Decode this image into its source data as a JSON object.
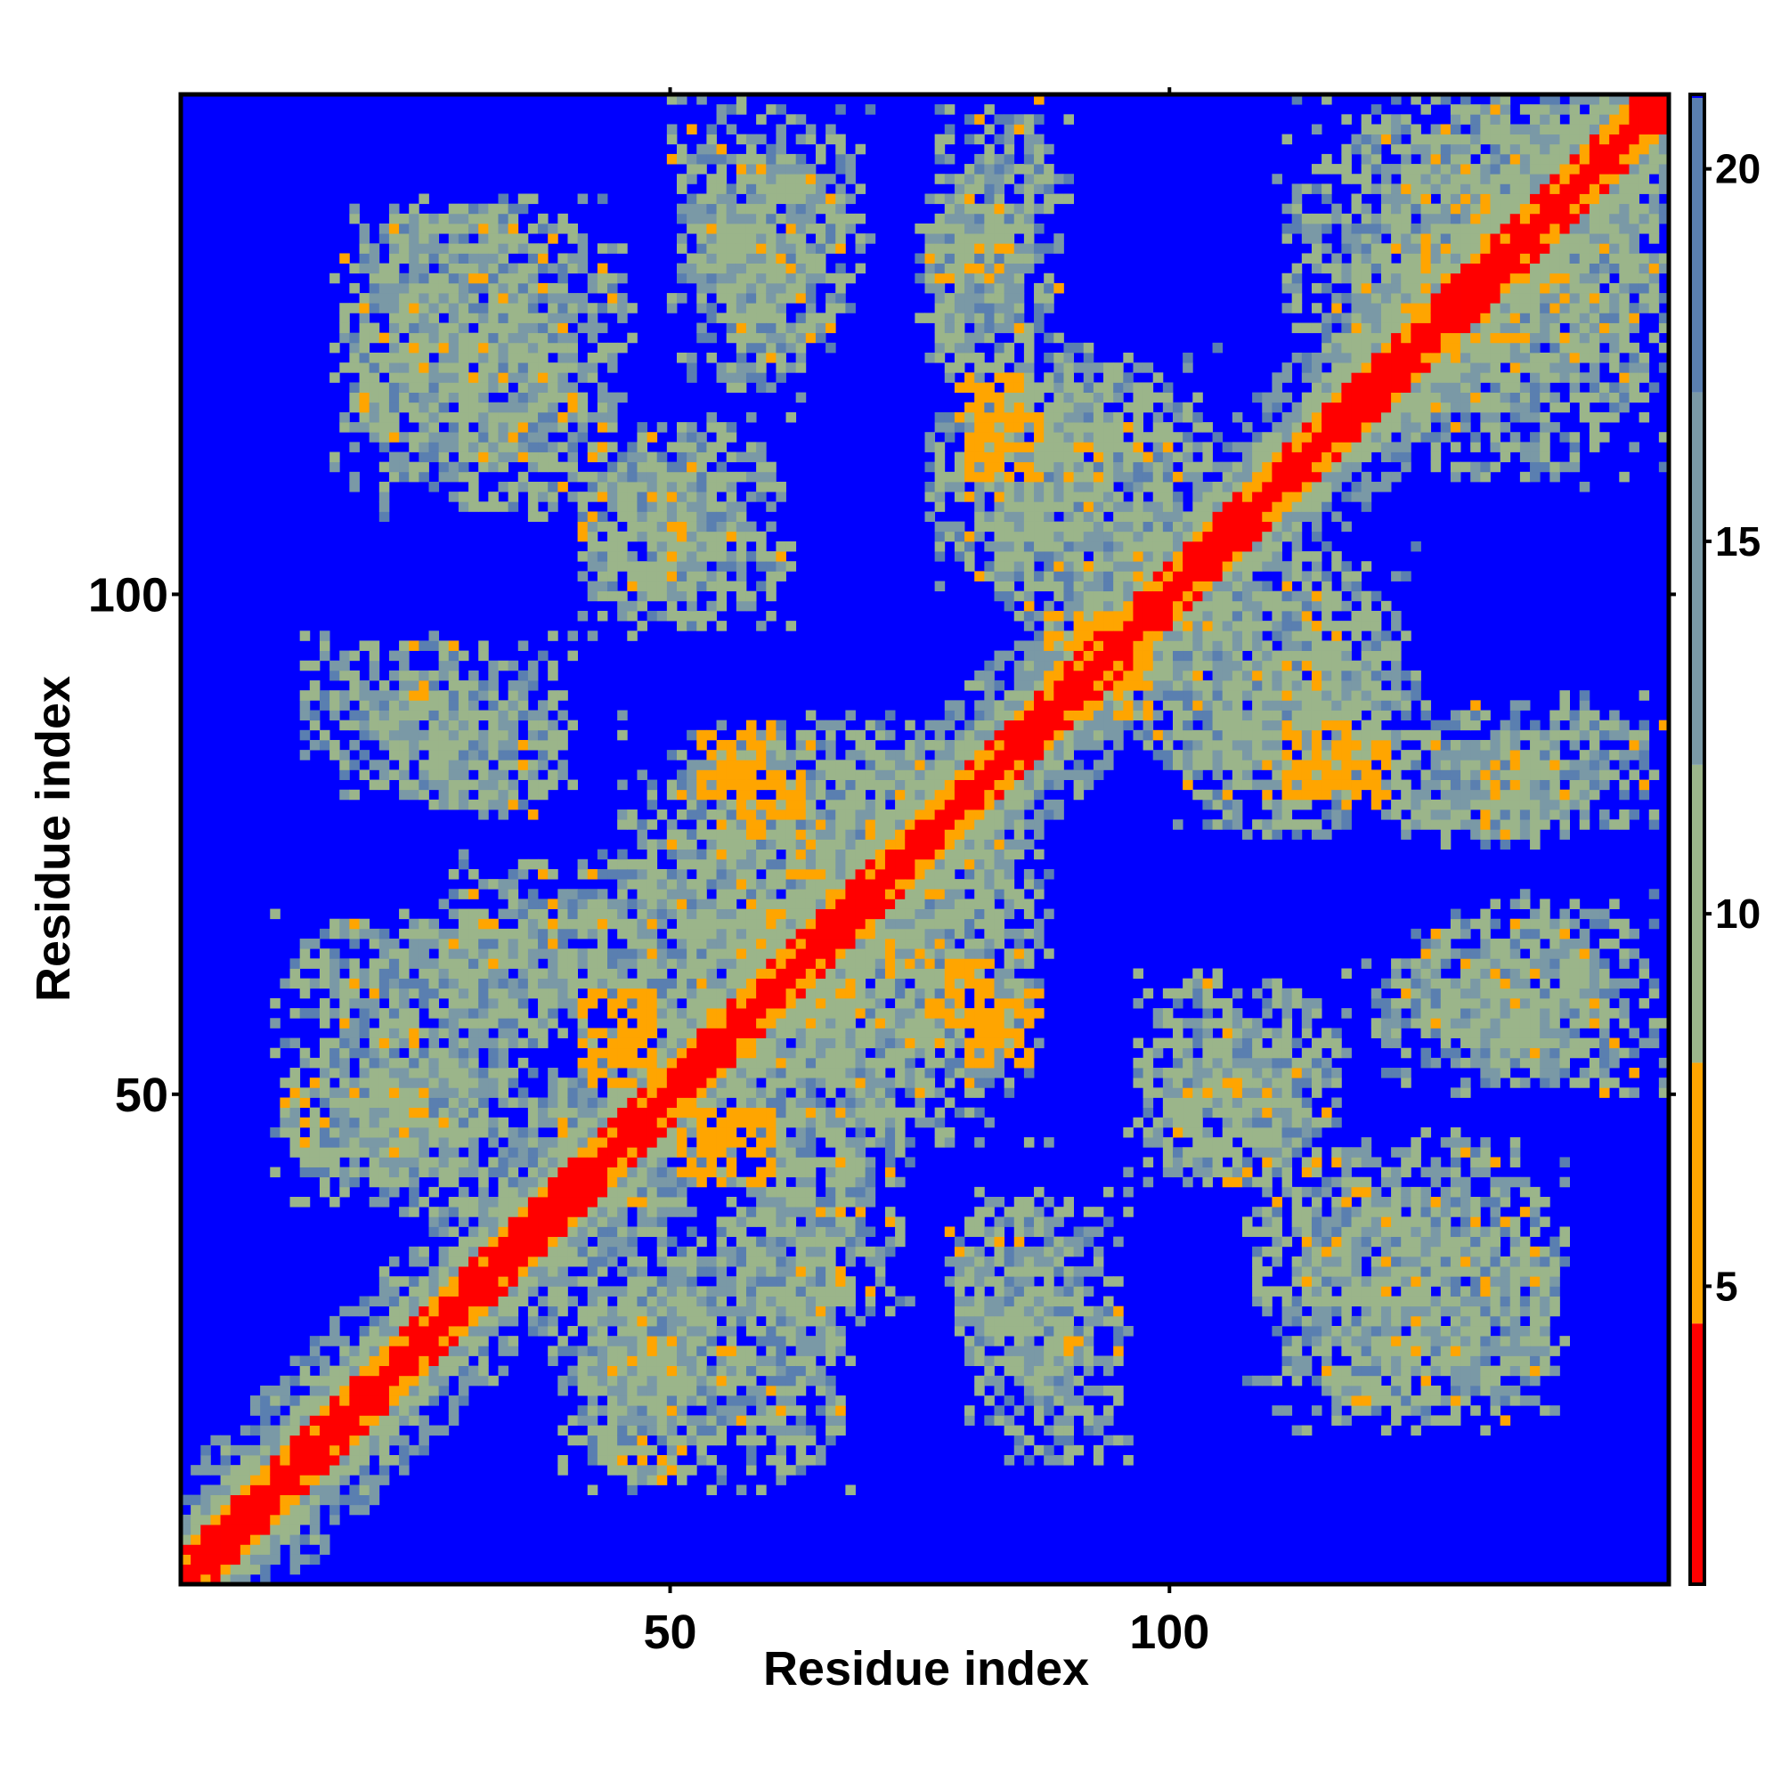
{
  "chart_data": {
    "type": "heatmap",
    "title": "",
    "xlabel": "Residue index",
    "ylabel": "Residue index",
    "n_residues": 150,
    "xlim": [
      1,
      150
    ],
    "ylim": [
      1,
      150
    ],
    "x_ticks": [
      50,
      100
    ],
    "y_ticks": [
      50,
      100
    ],
    "x_tick_labels": [
      "50",
      "100"
    ],
    "y_tick_labels": [
      "50",
      "100"
    ],
    "colorbar": {
      "range": [
        1,
        21
      ],
      "ticks": [
        5,
        10,
        15,
        20
      ],
      "tick_labels": [
        "5",
        "10",
        "15",
        "20"
      ],
      "segments": [
        {
          "from": 1,
          "to": 4.5,
          "color": "#ff0000"
        },
        {
          "from": 4.5,
          "to": 8,
          "color": "#ffa500"
        },
        {
          "from": 8,
          "to": 12,
          "color": "#9bb58a"
        },
        {
          "from": 12,
          "to": 17,
          "color": "#7a99a6"
        },
        {
          "from": 17,
          "to": 21,
          "color": "#5a7fb0"
        }
      ]
    },
    "background_value": 21,
    "background_color": "#0000ff",
    "cells_description_note": "",
    "diagonal": {
      "value": 1
    },
    "blocks": [
      {
        "x": [
          52,
          66
        ],
        "y": [
          120,
          144
        ],
        "level": "mid"
      },
      {
        "x": [
          18,
          46
        ],
        "y": [
          108,
          140
        ],
        "level": "mid"
      },
      {
        "x": [
          40,
          62
        ],
        "y": [
          96,
          118
        ],
        "level": "mid"
      },
      {
        "x": [
          75,
          86
        ],
        "y": [
          122,
          142
        ],
        "level": "mid"
      },
      {
        "x": [
          111,
          150
        ],
        "y": [
          118,
          150
        ],
        "level": "mid"
      },
      {
        "x": [
          12,
          40
        ],
        "y": [
          80,
          96
        ],
        "level": "mid"
      },
      {
        "x": [
          25,
          55
        ],
        "y": [
          55,
          74
        ],
        "level": "mid"
      },
      {
        "x": [
          10,
          40
        ],
        "y": [
          38,
          58
        ],
        "level": "mid"
      },
      {
        "x": [
          40,
          56
        ],
        "y": [
          10,
          30
        ],
        "level": "mid"
      },
      {
        "x": [
          55,
          68
        ],
        "y": [
          10,
          40
        ],
        "level": "mid"
      },
      {
        "x": [
          78,
          90
        ],
        "y": [
          20,
          40
        ],
        "level": "mid"
      },
      {
        "x": [
          96,
          115
        ],
        "y": [
          40,
          58
        ],
        "level": "mid"
      },
      {
        "x": [
          112,
          140
        ],
        "y": [
          16,
          40
        ],
        "level": "mid"
      },
      {
        "x": [
          124,
          150
        ],
        "y": [
          50,
          70
        ],
        "level": "mid"
      },
      {
        "x": [
          124,
          150
        ],
        "y": [
          75,
          90
        ],
        "level": "mid"
      },
      {
        "x": [
          95,
          125
        ],
        "y": [
          80,
          105
        ],
        "level": "mid"
      },
      {
        "x": [
          75,
          100
        ],
        "y": [
          100,
          125
        ],
        "level": "mid"
      },
      {
        "x": [
          50,
          88
        ],
        "y": [
          45,
          85
        ],
        "level": "mid"
      }
    ],
    "contacts": [
      {
        "x": [
          53,
          60
        ],
        "y": [
          80,
          87
        ],
        "level": "orange"
      },
      {
        "x": [
          41,
          48
        ],
        "y": [
          53,
          60
        ],
        "level": "orange"
      },
      {
        "x": [
          51,
          58
        ],
        "y": [
          42,
          48
        ],
        "level": "orange"
      },
      {
        "x": [
          76,
          82
        ],
        "y": [
          55,
          63
        ],
        "level": "orange"
      },
      {
        "x": [
          79,
          85
        ],
        "y": [
          115,
          122
        ],
        "level": "orange"
      },
      {
        "x": [
          112,
          118
        ],
        "y": [
          80,
          87
        ],
        "level": "orange"
      },
      {
        "x": [
          88,
          95
        ],
        "y": [
          92,
          98
        ],
        "level": "orange"
      }
    ]
  }
}
